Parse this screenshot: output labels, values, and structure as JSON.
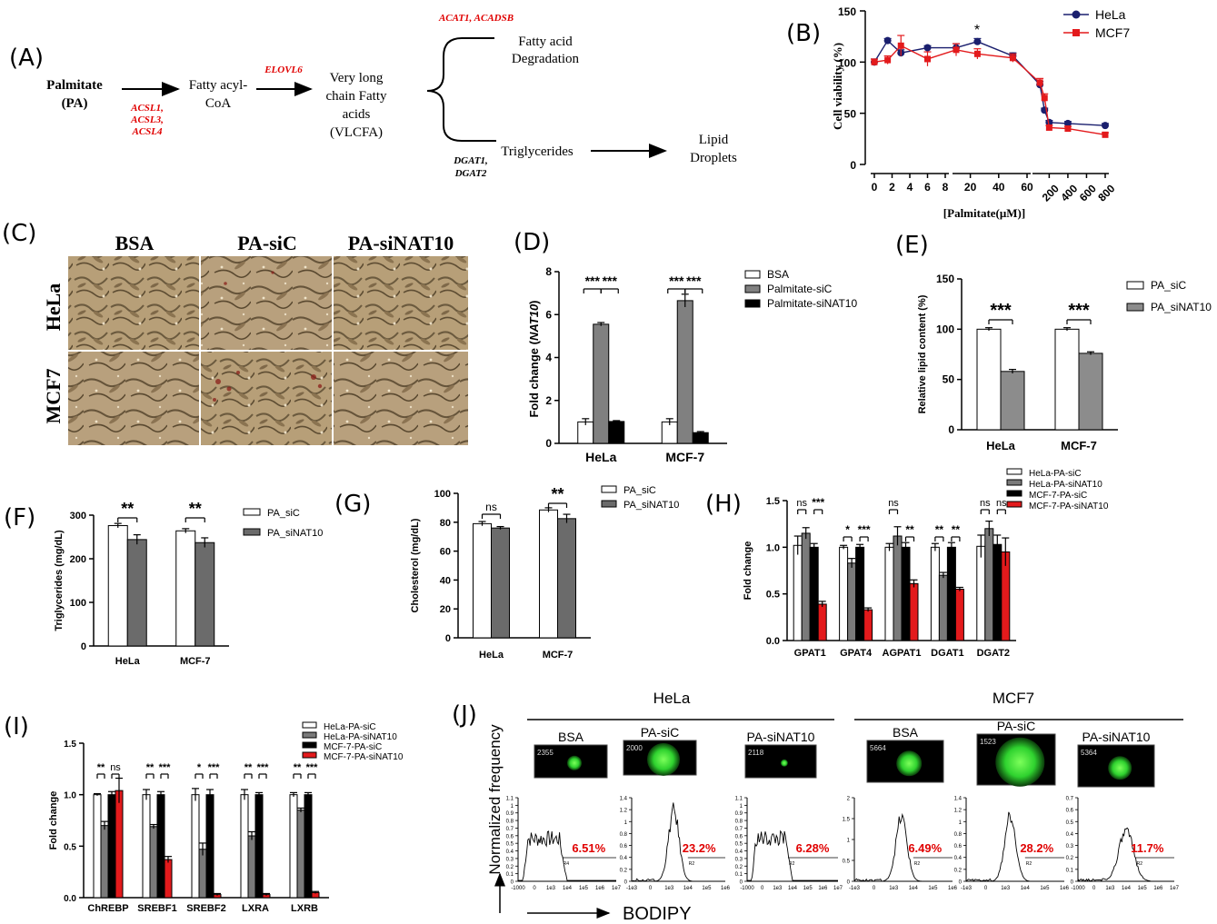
{
  "colors": {
    "red": "#e00000",
    "dark_navy": "#1a1f6e",
    "mcf_red": "#e31a1c",
    "gray": "#808080",
    "black": "#000000",
    "white": "#ffffff",
    "flow_green": "#2fe02f"
  },
  "panelA": {
    "letter": "(A)",
    "palmitate_line1": "Palmitate",
    "palmitate_line2": "(PA)",
    "enzymes1": [
      "ACSL1,",
      "ACSL3,",
      "ACSL4"
    ],
    "fatty_acyl_line1": "Fatty acyl-",
    "fatty_acyl_line2": "CoA",
    "elovl6": "ELOVL6",
    "vlcfa_lines": [
      "Very long",
      "chain Fatty",
      "acids",
      "(VLCFA)"
    ],
    "acat": "ACAT1, ACADSB",
    "degradation_line1": "Fatty acid",
    "degradation_line2": "Degradation",
    "dgat_line1": "DGAT1,",
    "dgat_line2": "DGAT2",
    "triglycerides": "Triglycerides",
    "lipid_line1": "Lipid",
    "lipid_line2": "Droplets"
  },
  "panelB": {
    "letter": "(B)",
    "ylabel": "Cell viability (%)",
    "xlabel": "[Palmitate(μM)]",
    "star": "*",
    "yticks": [
      "0",
      "50",
      "100",
      "150"
    ],
    "seg1_ticks": [
      "0",
      "2",
      "4",
      "6",
      "8"
    ],
    "seg2_ticks": [
      "20",
      "40",
      "60"
    ],
    "seg3_ticks": [
      "200",
      "400",
      "600",
      "800"
    ],
    "legend": [
      "HeLa",
      "MCF7"
    ]
  },
  "panelC": {
    "letter": "(C)",
    "col_labels": [
      "BSA",
      "PA-siC",
      "PA-siNAT10"
    ],
    "row_labels": [
      "HeLa",
      "MCF7"
    ]
  },
  "chart_data": [
    {
      "type": "line",
      "panel": "B",
      "ylabel": "Cell viability (%)",
      "xlabel": "[Palmitate(μM)]",
      "ylim": [
        0,
        150
      ],
      "x_segments": [
        [
          0,
          8
        ],
        [
          10,
          60
        ],
        [
          60,
          800
        ]
      ],
      "series": [
        {
          "name": "HeLa",
          "x": [
            0,
            1.5,
            3,
            6,
            10,
            25,
            50,
            100,
            150,
            200,
            400,
            800
          ],
          "y": [
            100,
            121,
            109,
            114,
            114,
            120,
            106,
            78,
            53,
            41,
            40,
            38
          ],
          "err": [
            3,
            2,
            3,
            2,
            4,
            3,
            3,
            3,
            2,
            2,
            2,
            2
          ]
        },
        {
          "name": "MCF7",
          "x": [
            0,
            1.5,
            3,
            6,
            10,
            25,
            50,
            100,
            150,
            200,
            400,
            800
          ],
          "y": [
            100,
            102,
            116,
            103,
            112,
            108,
            104,
            80,
            65,
            36,
            35,
            29
          ],
          "err": [
            3,
            4,
            10,
            7,
            6,
            5,
            4,
            4,
            4,
            2,
            2,
            2
          ]
        }
      ]
    },
    {
      "type": "bar",
      "panel": "D",
      "ylabel": "Fold change (NAT10)",
      "categories": [
        "HeLa",
        "MCF-7"
      ],
      "ylim": [
        0,
        8
      ],
      "yticks": [
        "0",
        "2",
        "4",
        "6",
        "8"
      ],
      "series": [
        {
          "name": "BSA",
          "values": [
            1.0,
            1.0
          ],
          "err": [
            0.15,
            0.15
          ]
        },
        {
          "name": "Palmitate-siC",
          "values": [
            5.55,
            6.65
          ],
          "err": [
            0.08,
            0.3
          ]
        },
        {
          "name": "Palmitate-siNAT10",
          "values": [
            1.02,
            0.5
          ],
          "err": [
            0.04,
            0.05
          ]
        }
      ],
      "sig": [
        "***",
        "***",
        "***",
        "***"
      ]
    },
    {
      "type": "bar",
      "panel": "E",
      "ylabel": "Relative lipid content (%)",
      "categories": [
        "HeLa",
        "MCF-7"
      ],
      "ylim": [
        0,
        150
      ],
      "yticks": [
        "0",
        "50",
        "100",
        "150"
      ],
      "series": [
        {
          "name": "PA_siC",
          "values": [
            100,
            100
          ],
          "err": [
            1.5,
            1.5
          ]
        },
        {
          "name": "PA_siNAT10",
          "values": [
            58,
            76
          ],
          "err": [
            2,
            1.5
          ]
        }
      ],
      "sig": [
        "***",
        "***"
      ]
    },
    {
      "type": "bar",
      "panel": "F",
      "ylabel": "Triglycerides (mg/dL)",
      "categories": [
        "HeLa",
        "MCF-7"
      ],
      "ylim": [
        0,
        300
      ],
      "yticks": [
        "0",
        "100",
        "200",
        "300"
      ],
      "series": [
        {
          "name": "PA_siC",
          "values": [
            276,
            264
          ],
          "err": [
            5,
            5
          ]
        },
        {
          "name": "PA_siNAT10",
          "values": [
            244,
            237
          ],
          "err": [
            11,
            11
          ]
        }
      ],
      "sig": [
        "**",
        "**"
      ]
    },
    {
      "type": "bar",
      "panel": "G",
      "ylabel": "Cholesterol (mg/dL)",
      "categories": [
        "HeLa",
        "MCF-7"
      ],
      "ylim": [
        0,
        100
      ],
      "yticks": [
        "0",
        "20",
        "40",
        "60",
        "80",
        "100"
      ],
      "series": [
        {
          "name": "PA_siC",
          "values": [
            79,
            88.5
          ],
          "err": [
            1.5,
            1.5
          ]
        },
        {
          "name": "PA_siNAT10",
          "values": [
            76,
            82.5
          ],
          "err": [
            1,
            3
          ]
        }
      ],
      "sig": [
        "ns",
        "**"
      ]
    },
    {
      "type": "bar",
      "panel": "H",
      "ylabel": "Fold change",
      "categories": [
        "GPAT1",
        "GPAT4",
        "AGPAT1",
        "DGAT1",
        "DGAT2"
      ],
      "ylim": [
        0,
        1.5
      ],
      "yticks": [
        "0.0",
        "0.5",
        "1.0",
        "1.5"
      ],
      "series": [
        {
          "name": "HeLa-PA-siC",
          "values": [
            1.02,
            1.0,
            1.0,
            1.0,
            1.01
          ],
          "err": [
            0.1,
            0.02,
            0.04,
            0.04,
            0.12
          ]
        },
        {
          "name": "HeLa-PA-siNAT10",
          "values": [
            1.15,
            0.83,
            1.12,
            0.7,
            1.2
          ],
          "err": [
            0.06,
            0.05,
            0.1,
            0.03,
            0.08
          ]
        },
        {
          "name": "MCF-7-PA-siC",
          "values": [
            1.0,
            1.0,
            1.0,
            1.0,
            1.03
          ],
          "err": [
            0.04,
            0.03,
            0.05,
            0.05,
            0.1
          ]
        },
        {
          "name": "MCF-7-PA-siNAT10",
          "values": [
            0.39,
            0.33,
            0.61,
            0.55,
            0.95
          ],
          "err": [
            0.03,
            0.02,
            0.04,
            0.02,
            0.15
          ]
        }
      ],
      "sig": [
        "ns",
        "***",
        "*",
        "***",
        "ns",
        "**",
        "**",
        "**",
        "ns",
        "ns"
      ]
    },
    {
      "type": "bar",
      "panel": "I",
      "ylabel": "Fold change",
      "categories": [
        "ChREBP",
        "SREBF1",
        "SREBF2",
        "LXRA",
        "LXRB"
      ],
      "ylim": [
        0,
        1.5
      ],
      "yticks": [
        "0.0",
        "0.5",
        "1.0",
        "1.5"
      ],
      "series": [
        {
          "name": "HeLa-PA-siC",
          "values": [
            1.0,
            1.0,
            1.0,
            1.0,
            1.0
          ],
          "err": [
            0.01,
            0.05,
            0.06,
            0.05,
            0.02
          ]
        },
        {
          "name": "HeLa-PA-siNAT10",
          "values": [
            0.7,
            0.69,
            0.47,
            0.6,
            0.85
          ],
          "err": [
            0.04,
            0.02,
            0.06,
            0.04,
            0.02
          ]
        },
        {
          "name": "MCF-7-PA-siC",
          "values": [
            1.0,
            1.0,
            1.0,
            1.0,
            1.0
          ],
          "err": [
            0.03,
            0.03,
            0.05,
            0.02,
            0.02
          ]
        },
        {
          "name": "MCF-7-PA-siNAT10",
          "values": [
            1.04,
            0.37,
            0.03,
            0.03,
            0.05
          ],
          "err": [
            0.12,
            0.03,
            0.01,
            0.01,
            0.01
          ]
        }
      ],
      "sig": [
        "**",
        "ns",
        "**",
        "***",
        "*",
        "***",
        "**",
        "***",
        "**",
        "***"
      ]
    },
    {
      "type": "line",
      "panel": "J",
      "xlabel": "BODIPY",
      "ylabel": "Normalized frequency",
      "groups": [
        "HeLa",
        "MCF7"
      ],
      "series": [
        {
          "name": "BSA",
          "cell": "HeLa",
          "count_label": "2355",
          "percent": "6.51%",
          "peak": 0.6
        },
        {
          "name": "PA-siC",
          "cell": "HeLa",
          "count_label": "2000",
          "percent": "23.2%",
          "peak": 1.0
        },
        {
          "name": "PA-siNAT10",
          "cell": "HeLa",
          "count_label": "2118",
          "percent": "6.28%",
          "peak": 0.6
        },
        {
          "name": "BSA",
          "cell": "MCF7",
          "count_label": "5664",
          "percent": "6.49%",
          "peak": 1.5
        },
        {
          "name": "PA-siC",
          "cell": "MCF7",
          "count_label": "1523",
          "percent": "28.2%",
          "peak": 1.0
        },
        {
          "name": "PA-siNAT10",
          "cell": "MCF7",
          "count_label": "5364",
          "percent": "11.7%",
          "peak": 0.45
        }
      ]
    }
  ],
  "panelD": {
    "letter": "(D)",
    "ylabel": "Fold change (",
    "ylabel_italic": "NAT10",
    "ylabel_end": ")"
  },
  "panelE": {
    "letter": "(E)"
  },
  "panelF": {
    "letter": "(F)"
  },
  "panelG": {
    "letter": "(G)"
  },
  "panelH": {
    "letter": "(H)"
  },
  "panelI": {
    "letter": "(I)"
  },
  "panelJ": {
    "letter": "(J)",
    "group_hela": "HeLa",
    "group_mcf7": "MCF7",
    "ylabel": "Normalized frequency",
    "xlabel": "BODIPY",
    "yticks_a": [
      "0",
      "0.1",
      "0.2",
      "0.3",
      "0.4",
      "0.5",
      "0.6",
      "0.7",
      "0.8",
      "0.9",
      "1",
      "1.1"
    ],
    "yticks_b": [
      "0",
      "0.2",
      "0.4",
      "0.6",
      "0.8",
      "1",
      "1.2",
      "1.4"
    ],
    "yticks_c": [
      "0",
      "0.5",
      "1",
      "1.5",
      "2"
    ],
    "yticks_d": [
      "0",
      "0.1",
      "0.2",
      "0.3",
      "0.4",
      "0.5",
      "0.6",
      "0.7"
    ],
    "xticks_a": [
      "-1000",
      "0",
      "1e3",
      "1e4",
      "1e5",
      "1e6",
      "1e7"
    ],
    "xticks_b": [
      "-1e3",
      "0",
      "1e3",
      "1e4",
      "1e5",
      "1e6"
    ],
    "gate_labels": [
      "R4",
      "R2",
      "R2",
      "R2",
      "R2",
      "R2"
    ]
  }
}
